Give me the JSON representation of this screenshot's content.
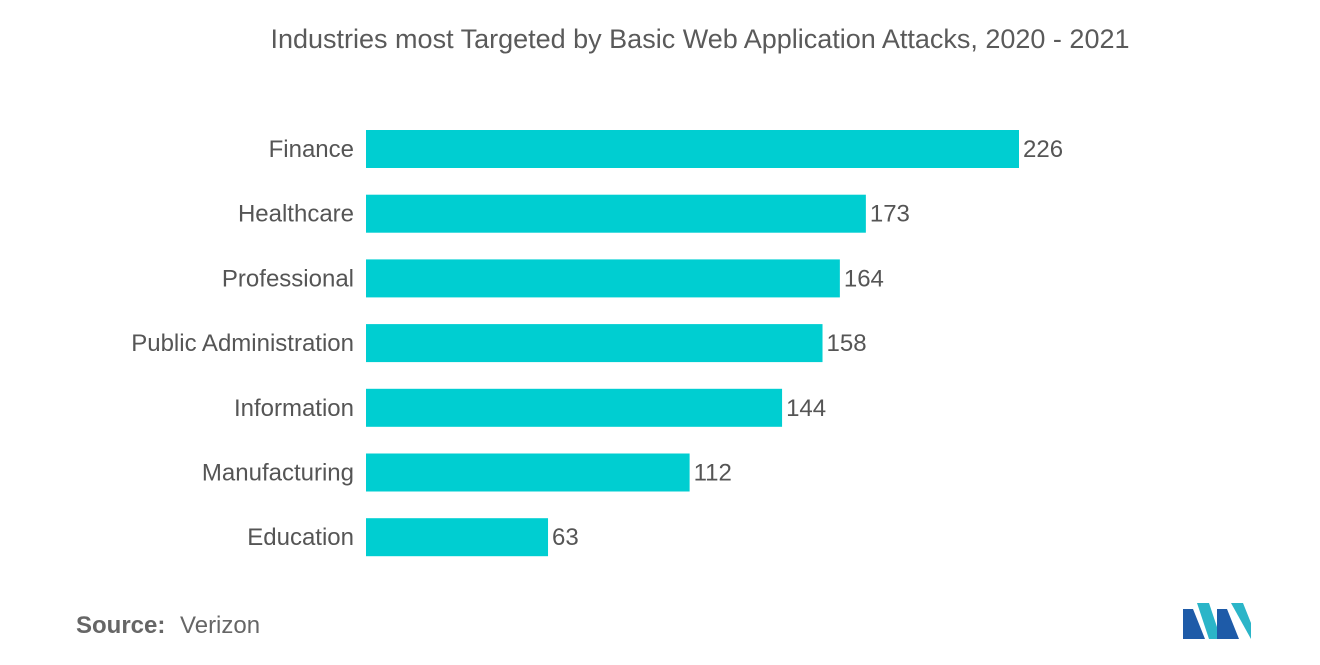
{
  "chart_data": {
    "type": "bar",
    "orientation": "horizontal",
    "title": "Industries most Targeted by Basic Web Application Attacks, 2020 - 2021",
    "categories": [
      "Finance",
      "Healthcare",
      "Professional",
      "Public Administration",
      "Information",
      "Manufacturing",
      "Education"
    ],
    "values": [
      226,
      173,
      164,
      158,
      144,
      112,
      63
    ],
    "xlim": [
      0,
      226
    ],
    "grid": false,
    "legend": "none",
    "bar_color": "#00CED1"
  },
  "source": {
    "label": "Source:",
    "value": "Verizon"
  },
  "logo": {
    "icon": "mordor-intelligence-logo"
  }
}
